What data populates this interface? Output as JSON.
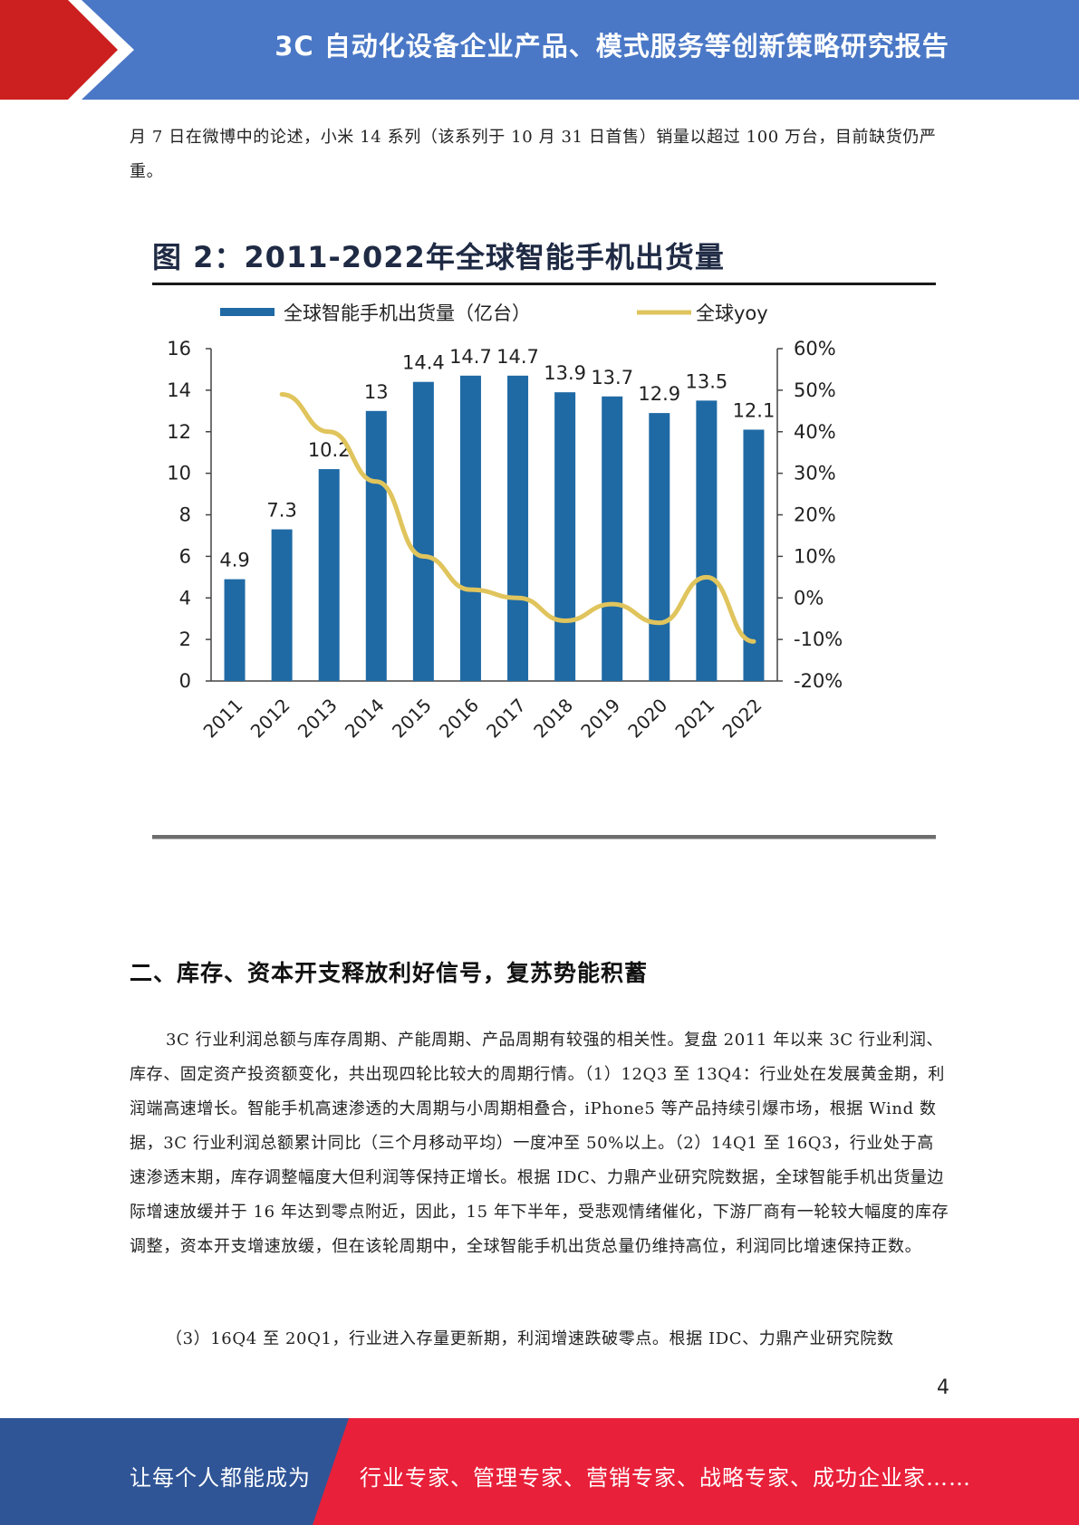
{
  "header": {
    "title": "3C 自动化设备企业产品、模式服务等创新策略研究报告"
  },
  "paragraphs": {
    "top": "月 7 日在微博中的论述，小米 14 系列（该系列于 10 月 31 日首售）销量以超过 100 万台，目前缺货仍严重。",
    "p1": "3C 行业利润总额与库存周期、产能周期、产品周期有较强的相关性。复盘 2011 年以来 3C 行业利润、库存、固定资产投资额变化，共出现四轮比较大的周期行情。（1）12Q3 至 13Q4：行业处在发展黄金期，利润端高速增长。智能手机高速渗透的大周期与小周期相叠合，iPhone5 等产品持续引爆市场，根据 Wind 数据，3C 行业利润总额累计同比（三个月移动平均）一度冲至 50%以上。（2）14Q1 至 16Q3，行业处于高速渗透末期，库存调整幅度大但利润等保持正增长。根据 IDC、力鼎产业研究院数据，全球智能手机出货量边际增速放缓并于 16 年达到零点附近，因此，15 年下半年，受悲观情绪催化，下游厂商有一轮较大幅度的库存调整，资本开支增速放缓，但在该轮周期中，全球智能手机出货总量仍维持高位，利润同比增速保持正数。",
    "p2": "（3）16Q4 至 20Q1，行业进入存量更新期，利润增速跌破零点。根据 IDC、力鼎产业研究院数"
  },
  "section": {
    "heading": "二、库存、资本开支释放利好信号，复苏势能积蓄"
  },
  "figure": {
    "title": "图 2：2011-2022年全球智能手机出货量"
  },
  "chart_data": {
    "type": "bar",
    "title": "图 2：2011-2022年全球智能手机出货量",
    "categories": [
      "2011",
      "2012",
      "2013",
      "2014",
      "2015",
      "2016",
      "2017",
      "2018",
      "2019",
      "2020",
      "2021",
      "2022"
    ],
    "series": [
      {
        "name": "全球智能手机出货量（亿台）",
        "type": "bar",
        "axis": "left",
        "color": "#1f6aa5",
        "values": [
          4.9,
          7.3,
          10.2,
          13,
          14.4,
          14.7,
          14.7,
          13.9,
          13.7,
          12.9,
          13.5,
          12.1
        ],
        "labels": [
          "4.9",
          "7.3",
          "10.2",
          "13",
          "14.4",
          "14.7",
          "14.7",
          "13.9",
          "13.7",
          "12.9",
          "13.5",
          "12.1"
        ]
      },
      {
        "name": "全球yoy",
        "type": "line",
        "axis": "right",
        "color": "#e0c45c",
        "x": [
          "2012",
          "2013",
          "2014",
          "2015",
          "2016",
          "2017",
          "2018",
          "2019",
          "2020",
          "2021",
          "2022"
        ],
        "values": [
          49,
          40,
          28,
          10,
          2,
          0,
          -5.5,
          -1.5,
          -6,
          5,
          -10.5
        ]
      }
    ],
    "ylim": [
      0,
      16
    ],
    "yticks": [
      "0",
      "2",
      "4",
      "6",
      "8",
      "10",
      "12",
      "14",
      "16"
    ],
    "y2lim": [
      -20,
      60
    ],
    "y2ticks": [
      "-20%",
      "-10%",
      "0%",
      "10%",
      "20%",
      "30%",
      "40%",
      "50%",
      "60%"
    ],
    "grid": false,
    "legend_position": "top"
  },
  "page_number": "4",
  "footer": {
    "slogan": "让每个人都能成为",
    "roles": "行业专家、管理专家、营销专家、战略专家、成功企业家……",
    "left_color": "#2f5596",
    "right_color": "#e8203a"
  }
}
